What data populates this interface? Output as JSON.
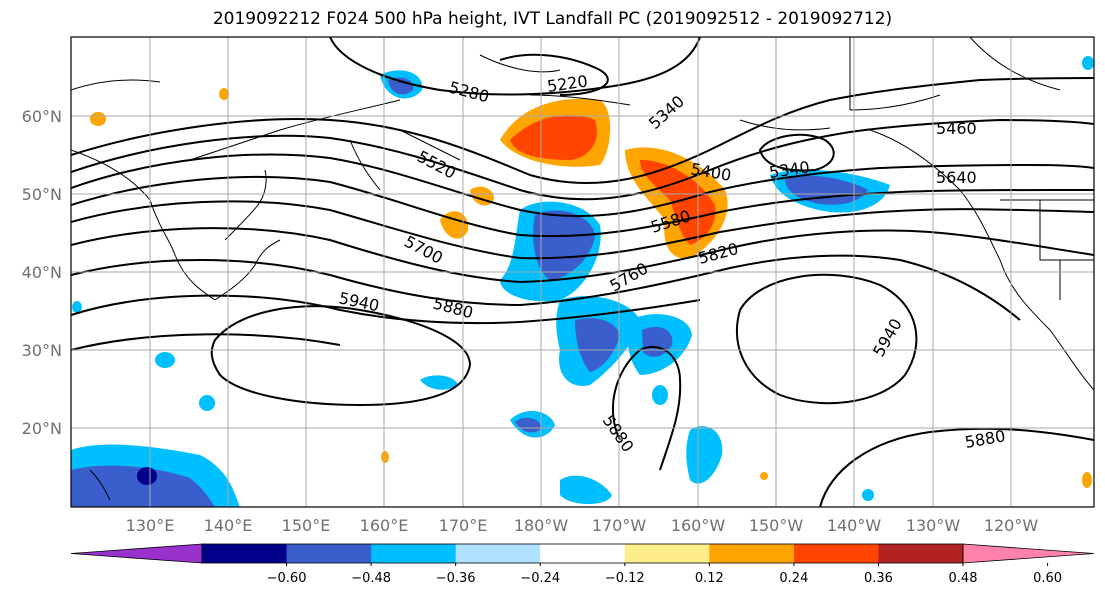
{
  "title": "2019092212 F024 500 hPa height, IVT Landfall PC (2019092512 - 2019092712)",
  "map": {
    "lat_labels": [
      "60°N",
      "50°N",
      "40°N",
      "30°N",
      "20°N"
    ],
    "lon_labels": [
      "130°E",
      "140°E",
      "150°E",
      "160°E",
      "170°E",
      "180°W",
      "170°W",
      "160°W",
      "150°W",
      "140°W",
      "130°W",
      "120°W"
    ],
    "contour_labels": [
      "5280",
      "5220",
      "5340",
      "5460",
      "5520",
      "5400",
      "5340",
      "5640",
      "5580",
      "5700",
      "5820",
      "5760",
      "5940",
      "5880",
      "5940",
      "5880",
      "5880"
    ]
  },
  "colorbar": {
    "tick_labels": [
      "−0.60",
      "−0.48",
      "−0.36",
      "−0.24",
      "−0.12",
      "0.12",
      "0.24",
      "0.36",
      "0.48",
      "0.60"
    ],
    "colors": [
      "#9932cc",
      "#00008b",
      "#3a5fcd",
      "#00bfff",
      "#b0e2ff",
      "#ffffff",
      "#ffec8b",
      "#ffa500",
      "#ff4500",
      "#b22222",
      "#ff82ab"
    ]
  }
}
